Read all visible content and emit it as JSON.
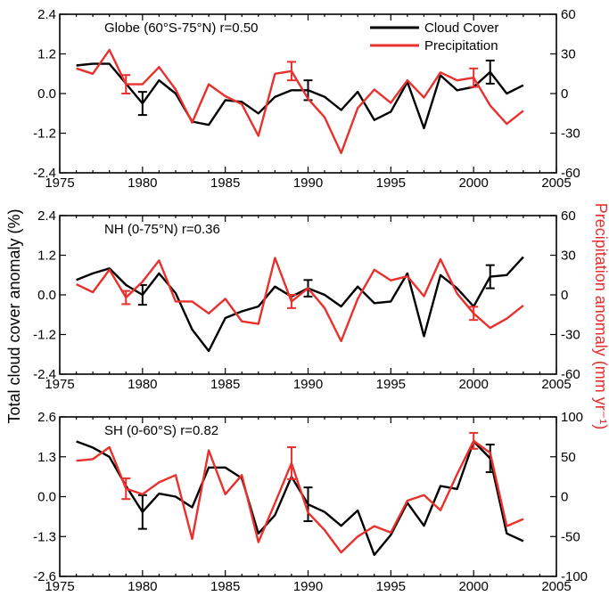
{
  "colors": {
    "cloud": "#000000",
    "precip": "#e8302c"
  },
  "labels": {
    "left_axis": "Total cloud cover anomaly (%)",
    "right_axis": "Precipitation anomaly (mm yr⁻¹)"
  },
  "legend": [
    {
      "label": "Cloud Cover",
      "color": "#000000"
    },
    {
      "label": "Precipitation",
      "color": "#e8302c"
    }
  ],
  "chart_data": [
    {
      "type": "line",
      "title": "Globe (60°S-75°N)  r=0.50",
      "xlim": [
        1975,
        2005
      ],
      "xticks": [
        1975,
        1980,
        1985,
        1990,
        1995,
        2000,
        2005
      ],
      "ylim_left": [
        -2.4,
        2.4
      ],
      "yticks_left": [
        "-2.4",
        "-1.2",
        "0.0",
        "1.2",
        "2.4"
      ],
      "ylim_right": [
        -60,
        60
      ],
      "yticks_right": [
        "-60",
        "-30",
        "0",
        "30",
        "60"
      ],
      "x": [
        1976,
        1977,
        1978,
        1979,
        1980,
        1981,
        1982,
        1983,
        1984,
        1985,
        1986,
        1987,
        1988,
        1989,
        1990,
        1991,
        1992,
        1993,
        1994,
        1995,
        1996,
        1997,
        1998,
        1999,
        2000,
        2001,
        2002,
        2003
      ],
      "series": [
        {
          "name": "Cloud Cover",
          "axis": "left",
          "values": [
            0.85,
            0.9,
            0.9,
            0.3,
            -0.3,
            0.4,
            0.0,
            -0.85,
            -0.95,
            -0.2,
            -0.25,
            -0.6,
            -0.1,
            0.1,
            0.1,
            -0.1,
            -0.5,
            0.05,
            -0.8,
            -0.55,
            0.35,
            -1.05,
            0.55,
            0.1,
            0.2,
            0.65,
            0.0,
            0.25
          ],
          "errorbars": [
            {
              "x": 1980,
              "err": 0.35
            },
            {
              "x": 1990,
              "err": 0.3
            },
            {
              "x": 2001,
              "err": 0.35
            }
          ]
        },
        {
          "name": "Precipitation",
          "axis": "right",
          "values": [
            19,
            15,
            33,
            7,
            7,
            20,
            3,
            -22,
            7,
            -2,
            -8,
            -32,
            15,
            17,
            -4,
            -18,
            -45,
            -11,
            3,
            -7,
            10,
            -3,
            16,
            10,
            12,
            -9,
            -23,
            -13
          ],
          "errorbars": [
            {
              "x": 1979,
              "err": 7
            },
            {
              "x": 1989,
              "err": 7
            },
            {
              "x": 2000,
              "err": 7
            }
          ]
        }
      ]
    },
    {
      "type": "line",
      "title": "NH (0-75°N)  r=0.36",
      "xlim": [
        1975,
        2005
      ],
      "xticks": [
        1975,
        1980,
        1985,
        1990,
        1995,
        2000,
        2005
      ],
      "ylim_left": [
        -2.4,
        2.4
      ],
      "yticks_left": [
        "-2.4",
        "-1.2",
        "0.0",
        "1.2",
        "2.4"
      ],
      "ylim_right": [
        -60,
        60
      ],
      "yticks_right": [
        "-60",
        "-30",
        "0",
        "30",
        "60"
      ],
      "x": [
        1976,
        1977,
        1978,
        1979,
        1980,
        1981,
        1982,
        1983,
        1984,
        1985,
        1986,
        1987,
        1988,
        1989,
        1990,
        1991,
        1992,
        1993,
        1994,
        1995,
        1996,
        1997,
        1998,
        1999,
        2000,
        2001,
        2002,
        2003
      ],
      "series": [
        {
          "name": "Cloud Cover",
          "axis": "left",
          "values": [
            0.45,
            0.65,
            0.8,
            0.3,
            0.0,
            0.65,
            0.05,
            -1.05,
            -1.7,
            -0.7,
            -0.5,
            -0.35,
            0.25,
            -0.05,
            0.2,
            0.0,
            -0.35,
            0.25,
            -0.25,
            -0.2,
            0.65,
            -1.25,
            0.6,
            0.2,
            -0.35,
            0.55,
            0.6,
            1.15
          ],
          "errorbars": [
            {
              "x": 1980,
              "err": 0.3
            },
            {
              "x": 1990,
              "err": 0.25
            },
            {
              "x": 2001,
              "err": 0.35
            }
          ]
        },
        {
          "name": "Precipitation",
          "axis": "right",
          "values": [
            8,
            2,
            19,
            -2,
            10,
            26,
            -5,
            -5,
            -14,
            -3,
            -20,
            -22,
            28,
            -5,
            5,
            -10,
            -35,
            -3,
            19,
            11,
            14,
            -1,
            27,
            1,
            -14,
            -25,
            -18,
            -8
          ],
          "errorbars": [
            {
              "x": 1979,
              "err": 5
            },
            {
              "x": 1989,
              "err": 5
            },
            {
              "x": 2000,
              "err": 5
            }
          ]
        }
      ]
    },
    {
      "type": "line",
      "title": "SH (0-60°S)  r=0.82",
      "xlim": [
        1975,
        2005
      ],
      "xticks": [
        1975,
        1980,
        1985,
        1990,
        1995,
        2000,
        2005
      ],
      "ylim_left": [
        -2.6,
        2.6
      ],
      "yticks_left": [
        "-2.6",
        "-1.3",
        "0.0",
        "1.3",
        "2.6"
      ],
      "ylim_right": [
        -100,
        100
      ],
      "yticks_right": [
        "-100",
        "-50",
        "0",
        "50",
        "100"
      ],
      "x": [
        1976,
        1977,
        1978,
        1979,
        1980,
        1981,
        1982,
        1983,
        1984,
        1985,
        1986,
        1987,
        1988,
        1989,
        1990,
        1991,
        1992,
        1993,
        1994,
        1995,
        1996,
        1997,
        1998,
        1999,
        2000,
        2001,
        2002,
        2003
      ],
      "series": [
        {
          "name": "Cloud Cover",
          "axis": "left",
          "values": [
            1.8,
            1.6,
            1.3,
            0.35,
            -0.5,
            0.1,
            0.0,
            -0.35,
            0.95,
            0.95,
            0.6,
            -1.2,
            -0.6,
            0.65,
            -0.25,
            -0.5,
            -0.95,
            -0.45,
            -1.9,
            -1.25,
            -0.2,
            -0.95,
            0.35,
            0.25,
            1.8,
            1.25,
            -1.2,
            -1.45
          ],
          "errorbars": [
            {
              "x": 1980,
              "err": 0.55
            },
            {
              "x": 1990,
              "err": 0.55
            },
            {
              "x": 2001,
              "err": 0.45
            }
          ]
        },
        {
          "name": "Precipitation",
          "axis": "right",
          "values": [
            45,
            47,
            62,
            10,
            3,
            18,
            27,
            -53,
            58,
            3,
            27,
            -57,
            -8,
            42,
            -20,
            -42,
            -70,
            -50,
            -37,
            -45,
            -5,
            2,
            -17,
            28,
            70,
            55,
            -37,
            -28
          ],
          "errorbars": [
            {
              "x": 1979,
              "err": 13
            },
            {
              "x": 1989,
              "err": 20
            },
            {
              "x": 2000,
              "err": 10
            }
          ]
        }
      ]
    }
  ]
}
